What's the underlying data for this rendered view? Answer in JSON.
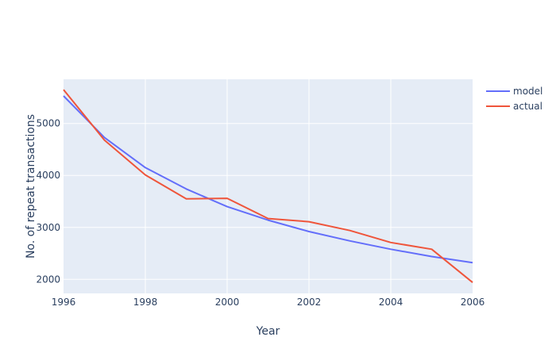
{
  "chart_data": {
    "type": "line",
    "title": "",
    "xlabel": "Year",
    "ylabel": "No. of repeat transactions",
    "xlim": [
      1996,
      2006
    ],
    "ylim": [
      1730,
      5850
    ],
    "x_ticks": [
      1996,
      1998,
      2000,
      2002,
      2004,
      2006
    ],
    "y_ticks": [
      2000,
      3000,
      4000,
      5000
    ],
    "grid": true,
    "legend_position": "top-right",
    "plot_background": "#e5ecf6",
    "series": [
      {
        "name": "model",
        "color": "#636efa",
        "x": [
          1996,
          1997,
          1998,
          1999,
          2000,
          2001,
          2002,
          2003,
          2004,
          2005,
          2006
        ],
        "values": [
          5530,
          4730,
          4150,
          3740,
          3400,
          3140,
          2920,
          2740,
          2580,
          2440,
          2320
        ]
      },
      {
        "name": "actual",
        "color": "#ef553b",
        "x": [
          1996,
          1997,
          1998,
          1999,
          2000,
          2001,
          2002,
          2003,
          2004,
          2005,
          2006
        ],
        "values": [
          5650,
          4680,
          4010,
          3550,
          3560,
          3170,
          3110,
          2940,
          2710,
          2580,
          1940
        ]
      }
    ]
  }
}
